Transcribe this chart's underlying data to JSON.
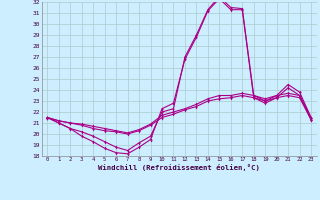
{
  "xlabel": "Windchill (Refroidissement éolien,°C)",
  "bg_color": "#cceeff",
  "grid_color": "#aacccc",
  "line_color": "#aa0088",
  "xlim": [
    -0.5,
    23.5
  ],
  "ylim": [
    18,
    32
  ],
  "yticks": [
    18,
    19,
    20,
    21,
    22,
    23,
    24,
    25,
    26,
    27,
    28,
    29,
    30,
    31,
    32
  ],
  "xticks": [
    0,
    1,
    2,
    3,
    4,
    5,
    6,
    7,
    8,
    9,
    10,
    11,
    12,
    13,
    14,
    15,
    16,
    17,
    18,
    19,
    20,
    21,
    22,
    23
  ],
  "line1_x": [
    0,
    1,
    2,
    3,
    4,
    5,
    6,
    7,
    8,
    9,
    10,
    11,
    12,
    13,
    14,
    15,
    16,
    17,
    18,
    19,
    20,
    21,
    22,
    23
  ],
  "line1_y": [
    21.5,
    21.0,
    20.5,
    19.8,
    19.3,
    18.7,
    18.3,
    18.2,
    18.8,
    19.5,
    22.3,
    22.8,
    26.8,
    28.8,
    31.2,
    32.3,
    31.3,
    31.3,
    23.3,
    22.8,
    23.3,
    24.2,
    23.5,
    21.3
  ],
  "line2_x": [
    0,
    1,
    2,
    3,
    4,
    5,
    6,
    7,
    8,
    9,
    10,
    11,
    12,
    13,
    14,
    15,
    16,
    17,
    18,
    19,
    20,
    21,
    22,
    23
  ],
  "line2_y": [
    21.5,
    21.0,
    20.5,
    20.2,
    19.8,
    19.3,
    18.8,
    18.5,
    19.2,
    19.8,
    22.0,
    22.3,
    27.0,
    29.0,
    31.3,
    32.5,
    31.5,
    31.4,
    23.5,
    23.0,
    23.5,
    24.5,
    23.8,
    21.5
  ],
  "line3_x": [
    0,
    1,
    2,
    3,
    4,
    5,
    6,
    7,
    8,
    9,
    10,
    11,
    12,
    13,
    14,
    15,
    16,
    17,
    18,
    19,
    20,
    21,
    22,
    23
  ],
  "line3_y": [
    21.5,
    21.2,
    21.0,
    20.8,
    20.5,
    20.3,
    20.2,
    20.0,
    20.3,
    20.8,
    21.5,
    21.8,
    22.2,
    22.5,
    23.0,
    23.2,
    23.3,
    23.5,
    23.3,
    23.0,
    23.3,
    23.5,
    23.3,
    21.3
  ],
  "line4_x": [
    0,
    1,
    2,
    3,
    4,
    5,
    6,
    7,
    8,
    9,
    10,
    11,
    12,
    13,
    14,
    15,
    16,
    17,
    18,
    19,
    20,
    21,
    22,
    23
  ],
  "line4_y": [
    21.5,
    21.2,
    21.0,
    20.9,
    20.7,
    20.5,
    20.3,
    20.1,
    20.4,
    20.9,
    21.7,
    22.0,
    22.3,
    22.7,
    23.2,
    23.5,
    23.5,
    23.7,
    23.5,
    23.2,
    23.5,
    23.7,
    23.5,
    21.5
  ]
}
